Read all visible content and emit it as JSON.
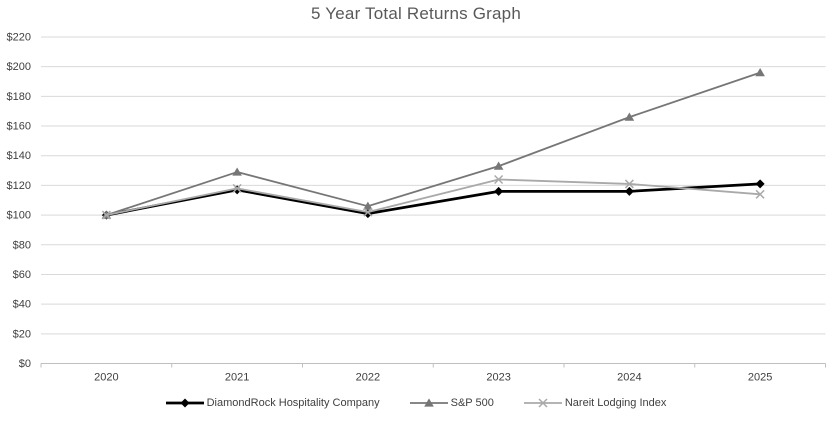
{
  "title": "5 Year Total Returns Graph",
  "chart_data": {
    "type": "line",
    "title": "5 Year Total Returns Graph",
    "x_categories": [
      "2020",
      "2021",
      "2022",
      "2023",
      "2024",
      "2025"
    ],
    "series": [
      {
        "name": "DiamondRock Hospitality Company",
        "marker": "diamond",
        "color": "#000000",
        "line_width": 2.75,
        "values": [
          100,
          117,
          101,
          116,
          116,
          121
        ]
      },
      {
        "name": "S&P 500",
        "marker": "triangle",
        "color": "#767676",
        "line_width": 1.8,
        "values": [
          100,
          129,
          106,
          133,
          166,
          196
        ]
      },
      {
        "name": "Nareit Lodging Index",
        "marker": "x",
        "color": "#a9a9a9",
        "line_width": 1.8,
        "values": [
          100,
          118,
          102,
          124,
          121,
          114
        ]
      }
    ],
    "y_axis": {
      "min": 0,
      "max": 220,
      "step": 20,
      "tick_labels": [
        "$0",
        "$20",
        "$40",
        "$60",
        "$80",
        "$100",
        "$120",
        "$140",
        "$160",
        "$180",
        "$200",
        "$220"
      ]
    },
    "x_axis": {
      "tick_labels": [
        "2020",
        "2021",
        "2022",
        "2023",
        "2024",
        "2025"
      ]
    },
    "grid": "horizontal",
    "legend_position": "bottom",
    "colors": {
      "background": "#ffffff",
      "title": "#595959",
      "tick_label": "#404040",
      "gridline": "#d9d9d9",
      "axis_line": "#bfbfbf"
    }
  }
}
